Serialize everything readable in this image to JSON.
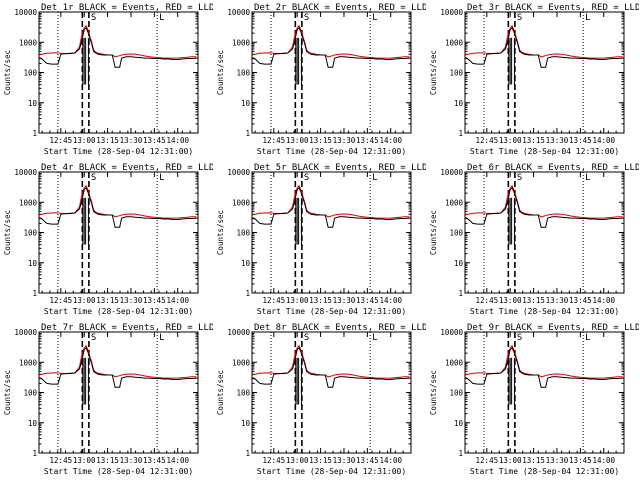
{
  "chart_data": {
    "type": "line",
    "layout": "3x3 grid",
    "xlabel": "Start Time (28-Sep-04 12:31:00)",
    "ylabel": "Counts/sec",
    "x_tick_labels": [
      "12:45",
      "13:00",
      "13:15",
      "13:30",
      "13:45",
      "14:00"
    ],
    "x_ticks_hours": [
      12.75,
      13.0,
      13.25,
      13.5,
      13.75,
      14.0
    ],
    "xlim_hours": [
      12.5167,
      14.2167
    ],
    "y_tick_labels": [
      "1",
      "10",
      "100",
      "1000",
      "10000"
    ],
    "ylim": [
      1,
      10000
    ],
    "yscale": "log",
    "vertical_lines": {
      "dotted_hours": [
        12.72,
        13.78
      ],
      "dashed_hours": [
        12.98,
        13.05
      ]
    },
    "markers": [
      {
        "label": "S",
        "x_hour": 13.06
      },
      {
        "label": "L",
        "x_hour": 13.79
      }
    ],
    "series_legend": "BLACK = Events, RED = LLD",
    "series_colors": {
      "events": "#000000",
      "lld": "#e00000"
    },
    "series_x_hours": [
      12.517,
      12.55,
      12.6,
      12.65,
      12.7,
      12.72,
      12.75,
      12.8,
      12.85,
      12.9,
      12.95,
      12.97,
      13.0,
      13.02,
      13.04,
      13.06,
      13.08,
      13.1,
      13.12,
      13.15,
      13.2,
      13.25,
      13.3,
      13.33,
      13.35,
      13.38,
      13.4,
      13.45,
      13.5,
      13.55,
      13.6,
      13.65,
      13.7,
      13.75,
      13.8,
      13.85,
      13.9,
      13.95,
      14.0,
      14.05,
      14.1,
      14.15,
      14.2
    ],
    "panels": [
      {
        "title": "Det 1r BLACK = Events, RED = LLD",
        "events": [
          300,
          280,
          200,
          190,
          190,
          190,
          400,
          420,
          430,
          440,
          600,
          1000,
          2600,
          3000,
          2200,
          1400,
          900,
          500,
          450,
          400,
          380,
          380,
          380,
          150,
          150,
          150,
          300,
          330,
          330,
          320,
          310,
          300,
          300,
          290,
          290,
          280,
          280,
          270,
          270,
          280,
          290,
          290,
          300
        ],
        "lld": [
          380,
          400,
          430,
          440,
          450,
          440,
          430,
          420,
          420,
          440,
          700,
          1500,
          3000,
          3500,
          2600,
          1600,
          1000,
          560,
          480,
          430,
          400,
          380,
          380,
          330,
          340,
          360,
          380,
          400,
          410,
          400,
          380,
          350,
          330,
          320,
          310,
          300,
          300,
          300,
          300,
          310,
          320,
          330,
          330
        ]
      },
      {
        "title": "Det 2r BLACK = Events, RED = LLD",
        "events": [
          300,
          280,
          200,
          190,
          190,
          190,
          400,
          420,
          430,
          440,
          600,
          1000,
          2600,
          3000,
          2200,
          1400,
          900,
          500,
          450,
          400,
          380,
          380,
          380,
          150,
          150,
          150,
          300,
          330,
          330,
          320,
          310,
          300,
          300,
          290,
          290,
          280,
          280,
          270,
          270,
          280,
          290,
          290,
          300
        ],
        "lld": [
          380,
          400,
          430,
          440,
          450,
          440,
          430,
          420,
          420,
          440,
          700,
          1500,
          3000,
          3500,
          2600,
          1600,
          1000,
          560,
          480,
          430,
          400,
          380,
          380,
          330,
          340,
          360,
          380,
          400,
          410,
          400,
          380,
          350,
          330,
          320,
          310,
          300,
          300,
          300,
          300,
          310,
          320,
          330,
          330
        ]
      },
      {
        "title": "Det 3r BLACK = Events, RED = LLD",
        "events": [
          300,
          280,
          200,
          190,
          190,
          190,
          400,
          420,
          430,
          440,
          600,
          1000,
          2600,
          3000,
          2200,
          1400,
          900,
          500,
          450,
          400,
          380,
          380,
          380,
          150,
          150,
          150,
          300,
          330,
          330,
          320,
          310,
          300,
          300,
          290,
          290,
          280,
          280,
          270,
          270,
          280,
          290,
          290,
          300
        ],
        "lld": [
          380,
          400,
          430,
          440,
          450,
          440,
          430,
          420,
          420,
          440,
          700,
          1500,
          3000,
          3500,
          2600,
          1600,
          1000,
          560,
          480,
          430,
          400,
          380,
          380,
          330,
          340,
          360,
          380,
          400,
          410,
          400,
          380,
          350,
          330,
          320,
          310,
          300,
          300,
          300,
          300,
          310,
          320,
          330,
          330
        ]
      },
      {
        "title": "Det 4r BLACK = Events, RED = LLD",
        "events": [
          300,
          280,
          200,
          190,
          190,
          190,
          400,
          420,
          430,
          440,
          600,
          1000,
          2600,
          3000,
          2200,
          1400,
          900,
          500,
          450,
          400,
          380,
          380,
          380,
          150,
          150,
          150,
          300,
          330,
          330,
          320,
          310,
          300,
          300,
          290,
          290,
          280,
          280,
          270,
          270,
          280,
          290,
          290,
          300
        ],
        "lld": [
          380,
          400,
          430,
          440,
          450,
          440,
          430,
          420,
          420,
          440,
          700,
          1500,
          3000,
          3500,
          2600,
          1600,
          1000,
          560,
          480,
          430,
          400,
          380,
          380,
          330,
          340,
          360,
          380,
          400,
          410,
          400,
          380,
          350,
          330,
          320,
          310,
          300,
          300,
          300,
          300,
          310,
          320,
          330,
          330
        ]
      },
      {
        "title": "Det 5r BLACK = Events, RED = LLD",
        "events": [
          300,
          280,
          200,
          190,
          190,
          190,
          400,
          420,
          430,
          440,
          600,
          1000,
          2600,
          3000,
          2200,
          1400,
          900,
          500,
          450,
          400,
          380,
          380,
          380,
          150,
          150,
          150,
          300,
          330,
          330,
          320,
          310,
          300,
          300,
          290,
          290,
          280,
          280,
          270,
          270,
          280,
          290,
          290,
          300
        ],
        "lld": [
          380,
          400,
          430,
          440,
          450,
          440,
          430,
          420,
          420,
          440,
          700,
          1500,
          3000,
          3500,
          2600,
          1600,
          1000,
          560,
          480,
          430,
          400,
          380,
          380,
          330,
          340,
          360,
          380,
          400,
          410,
          400,
          380,
          350,
          330,
          320,
          310,
          300,
          300,
          300,
          300,
          310,
          320,
          330,
          330
        ]
      },
      {
        "title": "Det 6r BLACK = Events, RED = LLD",
        "events": [
          300,
          280,
          200,
          190,
          190,
          190,
          400,
          420,
          430,
          440,
          600,
          1000,
          2600,
          3000,
          2200,
          1400,
          900,
          500,
          450,
          400,
          380,
          380,
          380,
          150,
          150,
          150,
          300,
          330,
          330,
          320,
          310,
          300,
          300,
          290,
          290,
          280,
          280,
          270,
          270,
          280,
          290,
          290,
          300
        ],
        "lld": [
          380,
          400,
          430,
          440,
          450,
          440,
          430,
          420,
          420,
          440,
          700,
          1500,
          3000,
          3500,
          2600,
          1600,
          1000,
          560,
          480,
          430,
          400,
          380,
          380,
          330,
          340,
          360,
          380,
          400,
          410,
          400,
          380,
          350,
          330,
          320,
          310,
          300,
          300,
          300,
          300,
          310,
          320,
          330,
          330
        ]
      },
      {
        "title": "Det 7r BLACK = Events, RED = LLD",
        "events": [
          300,
          280,
          200,
          190,
          190,
          190,
          400,
          420,
          430,
          440,
          600,
          1000,
          2600,
          3000,
          2200,
          1400,
          900,
          500,
          450,
          400,
          380,
          380,
          380,
          150,
          150,
          150,
          300,
          330,
          330,
          320,
          310,
          300,
          300,
          290,
          290,
          280,
          280,
          270,
          270,
          280,
          290,
          290,
          300
        ],
        "lld": [
          380,
          400,
          430,
          440,
          450,
          440,
          430,
          420,
          420,
          440,
          700,
          1500,
          3000,
          3500,
          2600,
          1600,
          1000,
          560,
          480,
          430,
          400,
          380,
          380,
          330,
          340,
          360,
          380,
          400,
          410,
          400,
          380,
          350,
          330,
          320,
          310,
          300,
          300,
          300,
          300,
          310,
          320,
          330,
          330
        ]
      },
      {
        "title": "Det 8r BLACK = Events, RED = LLD",
        "events": [
          300,
          280,
          200,
          190,
          190,
          190,
          400,
          420,
          430,
          440,
          600,
          1000,
          2600,
          3000,
          2200,
          1400,
          900,
          500,
          450,
          400,
          380,
          380,
          380,
          150,
          150,
          150,
          300,
          330,
          330,
          320,
          310,
          300,
          300,
          290,
          290,
          280,
          280,
          270,
          270,
          280,
          290,
          290,
          300
        ],
        "lld": [
          380,
          400,
          430,
          440,
          450,
          440,
          430,
          420,
          420,
          440,
          700,
          1500,
          3000,
          3500,
          2600,
          1600,
          1000,
          560,
          480,
          430,
          400,
          380,
          380,
          330,
          340,
          360,
          380,
          400,
          410,
          400,
          380,
          350,
          330,
          320,
          310,
          300,
          300,
          300,
          300,
          310,
          320,
          330,
          330
        ]
      },
      {
        "title": "Det 9r BLACK = Events, RED = LLD",
        "events": [
          300,
          280,
          200,
          190,
          190,
          190,
          400,
          420,
          430,
          440,
          600,
          1000,
          2600,
          3000,
          2200,
          1400,
          900,
          500,
          450,
          400,
          380,
          380,
          380,
          150,
          150,
          150,
          300,
          330,
          330,
          320,
          310,
          300,
          300,
          290,
          290,
          280,
          280,
          270,
          270,
          280,
          290,
          290,
          300
        ],
        "lld": [
          380,
          400,
          430,
          440,
          450,
          440,
          430,
          420,
          420,
          440,
          700,
          1500,
          3000,
          3500,
          2600,
          1600,
          1000,
          560,
          480,
          430,
          400,
          380,
          380,
          330,
          340,
          360,
          380,
          400,
          410,
          400,
          380,
          350,
          330,
          320,
          310,
          300,
          300,
          300,
          300,
          310,
          320,
          330,
          330
        ]
      }
    ]
  }
}
